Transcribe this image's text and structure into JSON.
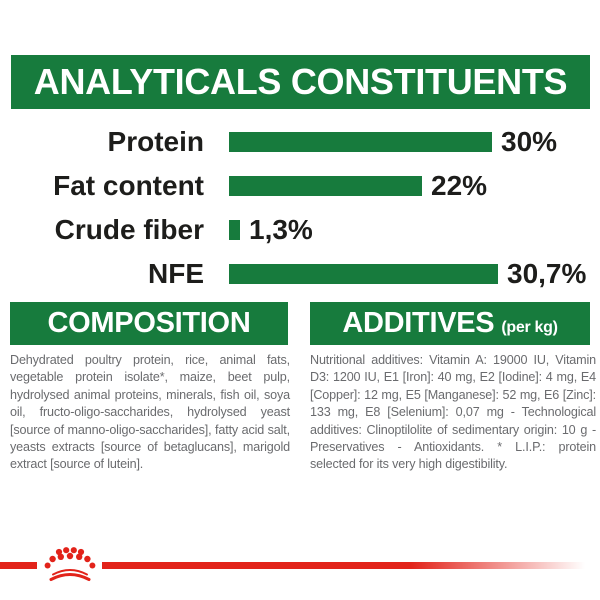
{
  "colors": {
    "green": "#177b3d",
    "red": "#e2231a",
    "heading_text": "#ffffff",
    "chart_text": "#1d1d1b",
    "body_text": "#6a6b6e"
  },
  "analytical_header": {
    "title": "ANALYTICALS CONSTITUENTS"
  },
  "chart_data": {
    "type": "bar",
    "orientation": "horizontal",
    "title": "ANALYTICALS CONSTITUENTS",
    "categories": [
      "Protein",
      "Fat content",
      "Crude fiber",
      "NFE"
    ],
    "values": [
      30,
      22,
      1.3,
      30.7
    ],
    "value_labels": [
      "30%",
      "22%",
      "1,3%",
      "30,7%"
    ],
    "unit": "%",
    "xlim": [
      0,
      34
    ],
    "bar_color": "#177b3d",
    "grid": "off",
    "legend": "none"
  },
  "composition": {
    "title": "COMPOSITION",
    "body": "Dehydrated poultry protein, rice, animal fats, vegetable protein isolate*, maize, beet pulp, hydrolysed animal proteins, minerals, fish oil, soya oil, fructo-oligo-saccharides, hydrolysed yeast [source of manno-oligo-saccharides], fatty acid salt, yeasts extracts [source of betaglucans], marigold extract [source of lutein]."
  },
  "additives": {
    "title": "ADDITIVES",
    "title_note": "(per kg)",
    "body": "Nutritional additives: Vitamin A: 19000 IU, Vitamin D3: 1200 IU, E1 [Iron]: 40 mg, E2 [Iodine]: 4 mg, E4 [Copper]: 12 mg, E5 [Manganese]: 52 mg, E6 [Zinc]: 133 mg, E8 [Selenium]: 0,07 mg - Technological additives: Clinoptilolite of sedimentary origin: 10 g - Preservatives - Antioxidants. * L.I.P.: protein selected for its very high digestibility."
  },
  "footer": {
    "logo": "royal-canin-crown",
    "logo_color": "#e2231a"
  }
}
